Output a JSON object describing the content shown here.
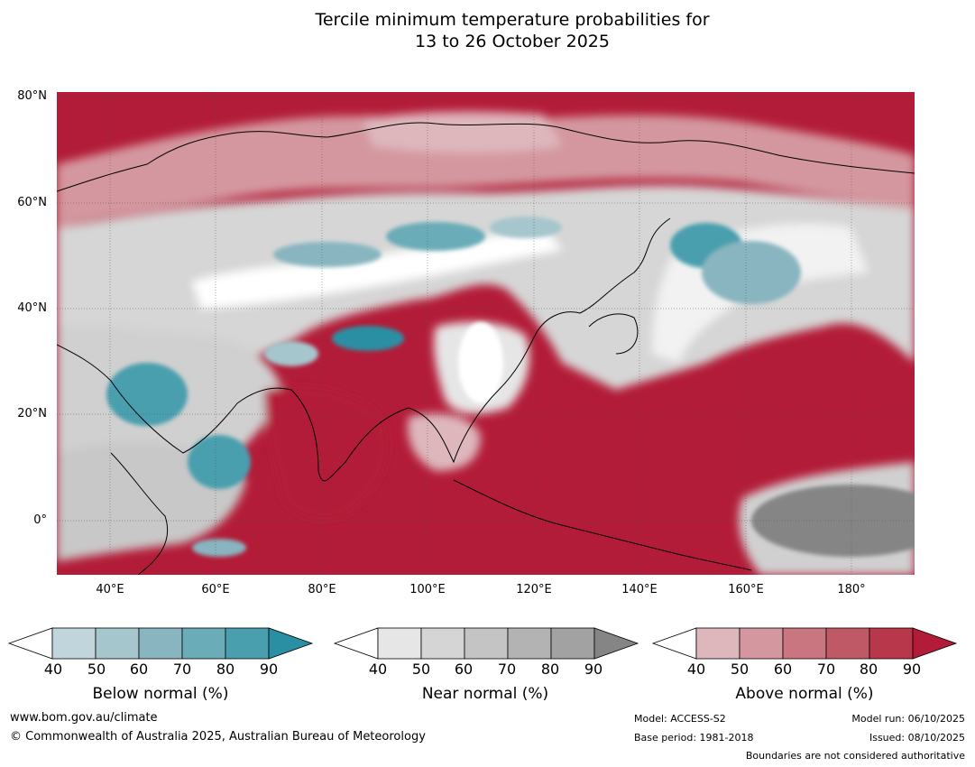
{
  "title": {
    "line1": "Tercile minimum temperature probabilities for",
    "line2": "13 to 26 October 2025"
  },
  "axes": {
    "lat_labels": [
      "80°N",
      "60°N",
      "40°N",
      "20°N",
      "0°"
    ],
    "lon_labels": [
      "40°E",
      "60°E",
      "80°E",
      "100°E",
      "120°E",
      "140°E",
      "160°E",
      "180°"
    ],
    "lat_range": [
      -10,
      81
    ],
    "lon_range": [
      30,
      192
    ]
  },
  "colors": {
    "ocean_above": "#b31c38",
    "land_mid": "#d6d6d6"
  },
  "legend": [
    {
      "label": "Below normal (%)",
      "ticks": [
        "40",
        "50",
        "60",
        "70",
        "80",
        "90"
      ],
      "colors": [
        "#ffffff",
        "#c0d5dc",
        "#a5c6cd",
        "#88b5c0",
        "#6aacb8",
        "#4a9fae",
        "#2a8fa3"
      ]
    },
    {
      "label": "Near normal (%)",
      "ticks": [
        "40",
        "50",
        "60",
        "70",
        "80",
        "90"
      ],
      "colors": [
        "#ffffff",
        "#e6e6e6",
        "#d5d5d5",
        "#c4c4c4",
        "#b3b3b3",
        "#a2a2a2",
        "#858585"
      ]
    },
    {
      "label": "Above normal (%)",
      "ticks": [
        "40",
        "50",
        "60",
        "70",
        "80",
        "90"
      ],
      "colors": [
        "#ffffff",
        "#deb7bd",
        "#d4979f",
        "#c97680",
        "#bf5966",
        "#b8374b",
        "#b31c38"
      ]
    }
  ],
  "footer": {
    "website": "www.bom.gov.au/climate",
    "copyright": "© Commonwealth of Australia 2025, Australian Bureau of Meteorology",
    "model": "Model: ACCESS-S2",
    "base_period": "Base period: 1981-2018",
    "model_run": "Model run: 06/10/2025",
    "issued": "Issued: 08/10/2025",
    "disclaimer": "Boundaries are not considered authoritative"
  }
}
